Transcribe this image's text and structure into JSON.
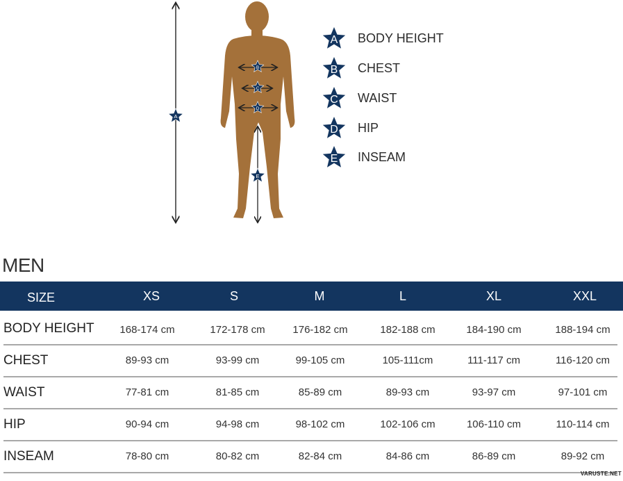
{
  "legend": [
    {
      "letter": "A",
      "label": "BODY HEIGHT"
    },
    {
      "letter": "B",
      "label": "CHEST"
    },
    {
      "letter": "C",
      "label": "WAIST"
    },
    {
      "letter": "D",
      "label": "HIP"
    },
    {
      "letter": "E",
      "label": "INSEAM"
    }
  ],
  "colors": {
    "star": "#13355f",
    "body": "#a4713a",
    "header": "#13355f"
  },
  "table": {
    "title": "MEN",
    "header": [
      "SIZE",
      "XS",
      "S",
      "M",
      "L",
      "XL",
      "XXL"
    ],
    "rows": [
      {
        "label": "BODY HEIGHT",
        "values": [
          "168-174 cm",
          "172-178 cm",
          "176-182 cm",
          "182-188 cm",
          "184-190 cm",
          "188-194 cm"
        ]
      },
      {
        "label": "CHEST",
        "values": [
          "89-93 cm",
          "93-99 cm",
          "99-105 cm",
          "105-111cm",
          "111-117 cm",
          "116-120 cm"
        ]
      },
      {
        "label": "WAIST",
        "values": [
          "77-81 cm",
          "81-85 cm",
          "85-89 cm",
          "89-93 cm",
          "93-97 cm",
          "97-101 cm"
        ]
      },
      {
        "label": "HIP",
        "values": [
          "90-94 cm",
          "94-98 cm",
          "98-102 cm",
          "102-106 cm",
          "106-110 cm",
          "110-114 cm"
        ]
      },
      {
        "label": "INSEAM",
        "values": [
          "78-80 cm",
          "80-82 cm",
          "82-84 cm",
          "84-86 cm",
          "86-89 cm",
          "89-92 cm"
        ]
      }
    ]
  },
  "watermark": "VARUSTE.NET"
}
